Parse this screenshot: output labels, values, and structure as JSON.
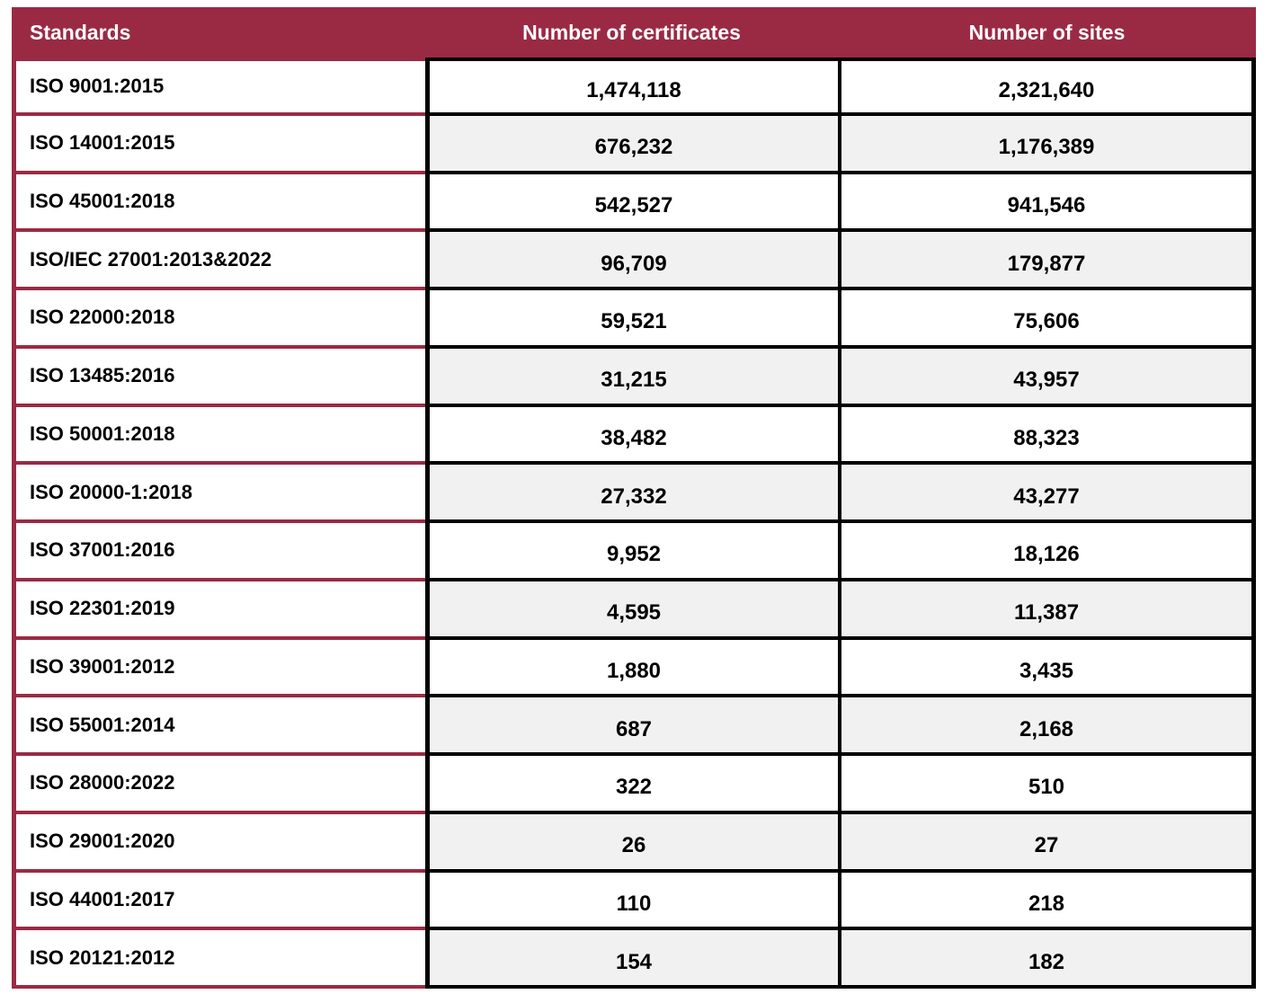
{
  "chart_data": {
    "type": "table",
    "title": "",
    "columns": [
      "Standards",
      "Number of certificates",
      "Number of sites"
    ],
    "categories": [
      "ISO 9001:2015",
      "ISO 14001:2015",
      "ISO 45001:2018",
      "ISO/IEC 27001:2013&2022",
      "ISO 22000:2018",
      "ISO 13485:2016",
      "ISO 50001:2018",
      "ISO 20000-1:2018",
      "ISO 37001:2016",
      "ISO 22301:2019",
      "ISO 39001:2012",
      "ISO 55001:2014",
      "ISO 28000:2022",
      "ISO 29001:2020",
      "ISO 44001:2017",
      "ISO 20121:2012"
    ],
    "series": [
      {
        "name": "Number of certificates",
        "values": [
          1474118,
          676232,
          542527,
          96709,
          59521,
          31215,
          38482,
          27332,
          9952,
          4595,
          1880,
          687,
          322,
          26,
          110,
          154
        ]
      },
      {
        "name": "Number of sites",
        "values": [
          2321640,
          1176389,
          941546,
          179877,
          75606,
          43957,
          88323,
          43277,
          18126,
          11387,
          3435,
          2168,
          510,
          27,
          218,
          182
        ]
      }
    ],
    "layout_hints": {
      "grid": "on",
      "header_fill": "#9A2A44",
      "alt_row_fill": "#F1F1F1"
    }
  },
  "table": {
    "headers": {
      "standards": "Standards",
      "certificates": "Number of certificates",
      "sites": "Number of sites"
    },
    "rows": [
      {
        "standard": "ISO 9001:2015",
        "certificates": "1,474,118",
        "sites": "2,321,640"
      },
      {
        "standard": "ISO 14001:2015",
        "certificates": "676,232",
        "sites": "1,176,389"
      },
      {
        "standard": "ISO 45001:2018",
        "certificates": "542,527",
        "sites": "941,546"
      },
      {
        "standard": "ISO/IEC 27001:2013&2022",
        "certificates": "96,709",
        "sites": "179,877"
      },
      {
        "standard": "ISO 22000:2018",
        "certificates": "59,521",
        "sites": "75,606"
      },
      {
        "standard": "ISO 13485:2016",
        "certificates": "31,215",
        "sites": "43,957"
      },
      {
        "standard": "ISO 50001:2018",
        "certificates": "38,482",
        "sites": "88,323"
      },
      {
        "standard": "ISO 20000-1:2018",
        "certificates": "27,332",
        "sites": "43,277"
      },
      {
        "standard": "ISO 37001:2016",
        "certificates": "9,952",
        "sites": "18,126"
      },
      {
        "standard": "ISO 22301:2019",
        "certificates": "4,595",
        "sites": "11,387"
      },
      {
        "standard": "ISO 39001:2012",
        "certificates": "1,880",
        "sites": "3,435"
      },
      {
        "standard": "ISO 55001:2014",
        "certificates": "687",
        "sites": "2,168"
      },
      {
        "standard": "ISO 28000:2022",
        "certificates": "322",
        "sites": "510"
      },
      {
        "standard": "ISO 29001:2020",
        "certificates": "26",
        "sites": "27"
      },
      {
        "standard": "ISO 44001:2017",
        "certificates": "110",
        "sites": "218"
      },
      {
        "standard": "ISO 20121:2012",
        "certificates": "154",
        "sites": "182"
      }
    ]
  },
  "colors": {
    "header_bg": "#9A2A44",
    "maroon_border": "#9A2A44",
    "black_border": "#000000",
    "row_bg": "#FFFFFF",
    "row_alt_bg": "#F1F1F1",
    "header_text": "#FFFFFF",
    "body_text": "#000000"
  }
}
